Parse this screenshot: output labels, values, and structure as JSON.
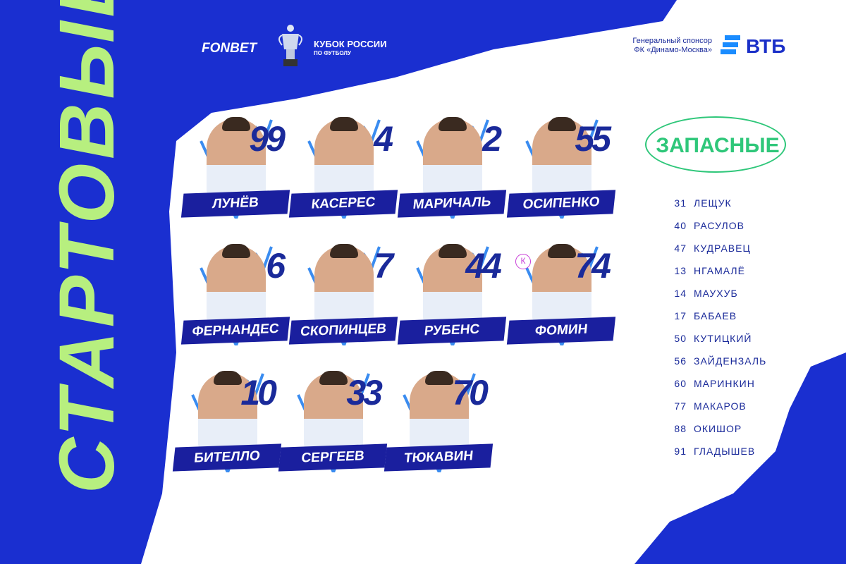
{
  "header": {
    "sponsor_brand": "FONBET",
    "cup_title": "КУБОК РОССИИ",
    "cup_subtitle": "ПО ФУТБОЛУ",
    "general_sponsor": "Генеральный спонсор",
    "club": "ФК «Динамо-Москва»",
    "bank": "ВТБ"
  },
  "starters": {
    "title": "СТАРТОВЫЕ",
    "players": [
      {
        "number": "99",
        "name": "ЛУНЁВ"
      },
      {
        "number": "4",
        "name": "КАСЕРЕС"
      },
      {
        "number": "2",
        "name": "МАРИЧАЛЬ"
      },
      {
        "number": "55",
        "name": "ОСИПЕНКО"
      },
      {
        "number": "6",
        "name": "ФЕРНАНДЕС"
      },
      {
        "number": "7",
        "name": "СКОПИНЦЕВ"
      },
      {
        "number": "44",
        "name": "РУБЕНС"
      },
      {
        "number": "74",
        "name": "ФОМИН",
        "captain": true
      },
      {
        "number": "10",
        "name": "БИТЕЛЛО"
      },
      {
        "number": "33",
        "name": "СЕРГЕЕВ"
      },
      {
        "number": "70",
        "name": "ТЮКАВИН"
      }
    ]
  },
  "captain_mark": "К",
  "subs": {
    "title": "ЗАПАСНЫЕ",
    "players": [
      {
        "number": "31",
        "name": "ЛЕЩУК"
      },
      {
        "number": "40",
        "name": "РАСУЛОВ"
      },
      {
        "number": "47",
        "name": "КУДРАВЕЦ"
      },
      {
        "number": "13",
        "name": "НГАМАЛЁ"
      },
      {
        "number": "14",
        "name": "МАУХУБ"
      },
      {
        "number": "17",
        "name": "БАБАЕВ"
      },
      {
        "number": "50",
        "name": "КУТИЦКИЙ"
      },
      {
        "number": "56",
        "name": "ЗАЙДЕНЗАЛЬ"
      },
      {
        "number": "60",
        "name": "МАРИНКИН"
      },
      {
        "number": "77",
        "name": "МАКАРОВ"
      },
      {
        "number": "88",
        "name": "ОКИШОР"
      },
      {
        "number": "91",
        "name": "ГЛАДЫШЕВ"
      }
    ]
  },
  "colors": {
    "blue": "#1a2fd0",
    "navy": "#1a1f9e",
    "green": "#b7ef7f",
    "subs_green": "#2fc77a",
    "captain": "#c940d8"
  }
}
